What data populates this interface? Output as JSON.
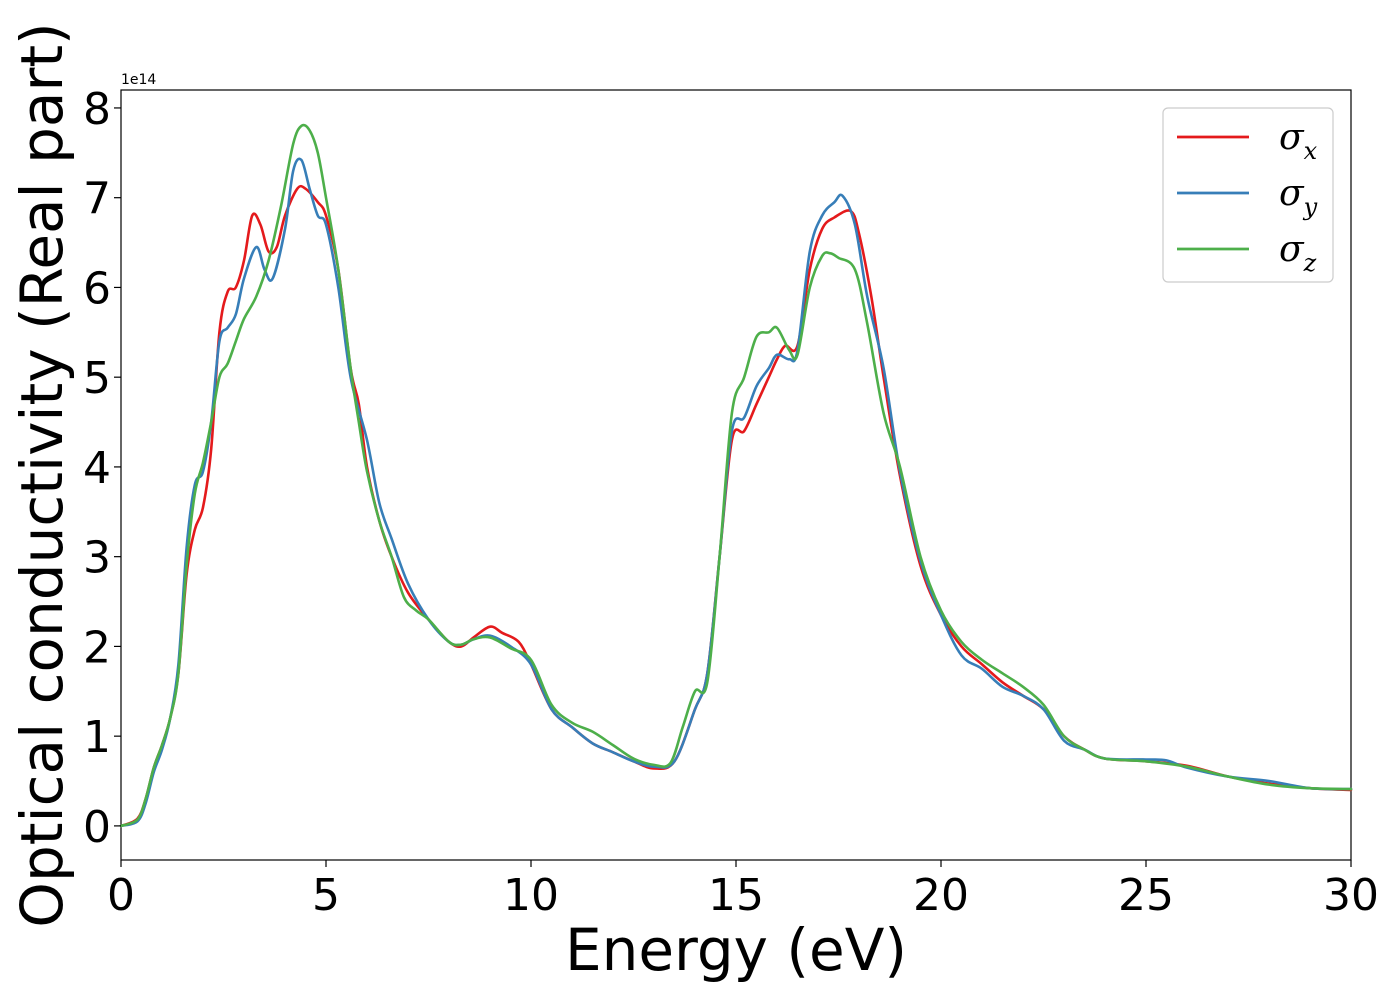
{
  "chart_data": {
    "type": "line",
    "xlabel": "Energy (eV)",
    "ylabel": "Optical conductivity (Real part)",
    "y_offset_text": "1e14",
    "xlim": [
      0,
      30
    ],
    "ylim": [
      -0.38,
      8.2
    ],
    "x_ticks": [
      0,
      5,
      10,
      15,
      20,
      25,
      30
    ],
    "y_ticks": [
      0,
      1,
      2,
      3,
      4,
      5,
      6,
      7,
      8
    ],
    "grid": false,
    "legend_position": "top-right",
    "series": [
      {
        "name": "σx",
        "symbol": "σ",
        "subscript": "x",
        "color": "#e41a1c",
        "points": [
          [
            0,
            0
          ],
          [
            0.4,
            0.08
          ],
          [
            0.6,
            0.3
          ],
          [
            0.8,
            0.65
          ],
          [
            1.0,
            0.9
          ],
          [
            1.2,
            1.2
          ],
          [
            1.4,
            1.7
          ],
          [
            1.6,
            2.8
          ],
          [
            1.8,
            3.3
          ],
          [
            2.0,
            3.55
          ],
          [
            2.2,
            4.2
          ],
          [
            2.4,
            5.5
          ],
          [
            2.6,
            5.95
          ],
          [
            2.8,
            6.0
          ],
          [
            3.0,
            6.3
          ],
          [
            3.2,
            6.8
          ],
          [
            3.4,
            6.7
          ],
          [
            3.6,
            6.4
          ],
          [
            3.8,
            6.45
          ],
          [
            4.0,
            6.8
          ],
          [
            4.3,
            7.1
          ],
          [
            4.5,
            7.1
          ],
          [
            4.8,
            6.95
          ],
          [
            5.0,
            6.8
          ],
          [
            5.3,
            6.2
          ],
          [
            5.6,
            5.1
          ],
          [
            5.8,
            4.7
          ],
          [
            6.0,
            4.0
          ],
          [
            6.3,
            3.4
          ],
          [
            6.6,
            3.0
          ],
          [
            7.0,
            2.6
          ],
          [
            7.5,
            2.3
          ],
          [
            8.0,
            2.05
          ],
          [
            8.3,
            2.0
          ],
          [
            8.6,
            2.1
          ],
          [
            9.0,
            2.22
          ],
          [
            9.3,
            2.15
          ],
          [
            9.7,
            2.05
          ],
          [
            10.0,
            1.8
          ],
          [
            10.5,
            1.3
          ],
          [
            11.0,
            1.1
          ],
          [
            11.5,
            0.92
          ],
          [
            12.0,
            0.82
          ],
          [
            12.5,
            0.72
          ],
          [
            13.0,
            0.64
          ],
          [
            13.5,
            0.72
          ],
          [
            14.0,
            1.3
          ],
          [
            14.3,
            1.7
          ],
          [
            14.6,
            3.0
          ],
          [
            14.9,
            4.3
          ],
          [
            15.2,
            4.4
          ],
          [
            15.5,
            4.7
          ],
          [
            15.8,
            5.0
          ],
          [
            16.0,
            5.2
          ],
          [
            16.2,
            5.35
          ],
          [
            16.5,
            5.35
          ],
          [
            16.8,
            6.2
          ],
          [
            17.1,
            6.65
          ],
          [
            17.4,
            6.78
          ],
          [
            17.8,
            6.85
          ],
          [
            18.0,
            6.6
          ],
          [
            18.3,
            5.9
          ],
          [
            18.6,
            5.0
          ],
          [
            19.0,
            3.9
          ],
          [
            19.5,
            2.9
          ],
          [
            20.0,
            2.35
          ],
          [
            20.5,
            2.0
          ],
          [
            21.0,
            1.8
          ],
          [
            21.5,
            1.6
          ],
          [
            22.0,
            1.45
          ],
          [
            22.5,
            1.3
          ],
          [
            23.0,
            1.0
          ],
          [
            23.5,
            0.85
          ],
          [
            24.0,
            0.75
          ],
          [
            25.0,
            0.72
          ],
          [
            26.0,
            0.67
          ],
          [
            27.0,
            0.55
          ],
          [
            28.0,
            0.47
          ],
          [
            29.0,
            0.42
          ],
          [
            30.0,
            0.4
          ]
        ]
      },
      {
        "name": "σy",
        "symbol": "σ",
        "subscript": "y",
        "color": "#377eb8",
        "points": [
          [
            0,
            0
          ],
          [
            0.4,
            0.05
          ],
          [
            0.6,
            0.25
          ],
          [
            0.8,
            0.6
          ],
          [
            1.0,
            0.85
          ],
          [
            1.2,
            1.2
          ],
          [
            1.4,
            1.8
          ],
          [
            1.6,
            3.1
          ],
          [
            1.8,
            3.8
          ],
          [
            2.0,
            3.95
          ],
          [
            2.2,
            4.5
          ],
          [
            2.4,
            5.4
          ],
          [
            2.6,
            5.55
          ],
          [
            2.8,
            5.7
          ],
          [
            3.0,
            6.1
          ],
          [
            3.3,
            6.45
          ],
          [
            3.5,
            6.2
          ],
          [
            3.7,
            6.1
          ],
          [
            4.0,
            6.65
          ],
          [
            4.2,
            7.3
          ],
          [
            4.4,
            7.42
          ],
          [
            4.6,
            7.1
          ],
          [
            4.8,
            6.8
          ],
          [
            5.0,
            6.7
          ],
          [
            5.3,
            6.0
          ],
          [
            5.6,
            5.0
          ],
          [
            6.0,
            4.3
          ],
          [
            6.3,
            3.6
          ],
          [
            6.6,
            3.2
          ],
          [
            7.0,
            2.7
          ],
          [
            7.5,
            2.3
          ],
          [
            8.0,
            2.05
          ],
          [
            8.3,
            2.02
          ],
          [
            8.6,
            2.08
          ],
          [
            9.0,
            2.12
          ],
          [
            9.5,
            2.0
          ],
          [
            10.0,
            1.8
          ],
          [
            10.5,
            1.3
          ],
          [
            11.0,
            1.1
          ],
          [
            11.5,
            0.92
          ],
          [
            12.0,
            0.82
          ],
          [
            12.5,
            0.72
          ],
          [
            13.0,
            0.66
          ],
          [
            13.5,
            0.72
          ],
          [
            14.0,
            1.3
          ],
          [
            14.3,
            1.7
          ],
          [
            14.6,
            3.0
          ],
          [
            14.9,
            4.4
          ],
          [
            15.2,
            4.55
          ],
          [
            15.5,
            4.9
          ],
          [
            15.8,
            5.1
          ],
          [
            16.0,
            5.25
          ],
          [
            16.3,
            5.2
          ],
          [
            16.5,
            5.3
          ],
          [
            16.8,
            6.4
          ],
          [
            17.1,
            6.8
          ],
          [
            17.4,
            6.95
          ],
          [
            17.6,
            7.02
          ],
          [
            17.9,
            6.7
          ],
          [
            18.2,
            5.9
          ],
          [
            18.6,
            5.1
          ],
          [
            19.0,
            3.95
          ],
          [
            19.5,
            2.95
          ],
          [
            20.0,
            2.35
          ],
          [
            20.5,
            1.9
          ],
          [
            21.0,
            1.75
          ],
          [
            21.5,
            1.55
          ],
          [
            22.0,
            1.45
          ],
          [
            22.5,
            1.3
          ],
          [
            23.0,
            0.95
          ],
          [
            23.5,
            0.85
          ],
          [
            24.0,
            0.75
          ],
          [
            25.0,
            0.74
          ],
          [
            25.5,
            0.73
          ],
          [
            26.0,
            0.65
          ],
          [
            27.0,
            0.55
          ],
          [
            28.0,
            0.5
          ],
          [
            29.0,
            0.42
          ],
          [
            30.0,
            0.41
          ]
        ]
      },
      {
        "name": "σz",
        "symbol": "σ",
        "subscript": "z",
        "color": "#4daf4a",
        "points": [
          [
            0,
            0
          ],
          [
            0.4,
            0.07
          ],
          [
            0.6,
            0.3
          ],
          [
            0.8,
            0.65
          ],
          [
            1.0,
            0.9
          ],
          [
            1.2,
            1.2
          ],
          [
            1.4,
            1.7
          ],
          [
            1.6,
            2.9
          ],
          [
            1.8,
            3.7
          ],
          [
            2.0,
            4.05
          ],
          [
            2.2,
            4.5
          ],
          [
            2.4,
            5.0
          ],
          [
            2.6,
            5.15
          ],
          [
            2.8,
            5.4
          ],
          [
            3.0,
            5.65
          ],
          [
            3.3,
            5.9
          ],
          [
            3.6,
            6.3
          ],
          [
            3.9,
            6.9
          ],
          [
            4.2,
            7.6
          ],
          [
            4.4,
            7.8
          ],
          [
            4.6,
            7.75
          ],
          [
            4.8,
            7.5
          ],
          [
            5.0,
            7.0
          ],
          [
            5.3,
            6.2
          ],
          [
            5.6,
            5.1
          ],
          [
            5.8,
            4.5
          ],
          [
            6.0,
            3.95
          ],
          [
            6.3,
            3.4
          ],
          [
            6.6,
            3.0
          ],
          [
            6.9,
            2.55
          ],
          [
            7.2,
            2.4
          ],
          [
            7.5,
            2.3
          ],
          [
            8.0,
            2.05
          ],
          [
            8.3,
            2.02
          ],
          [
            8.6,
            2.08
          ],
          [
            9.0,
            2.1
          ],
          [
            9.5,
            1.98
          ],
          [
            10.0,
            1.85
          ],
          [
            10.5,
            1.35
          ],
          [
            11.0,
            1.15
          ],
          [
            11.5,
            1.05
          ],
          [
            12.0,
            0.9
          ],
          [
            12.5,
            0.75
          ],
          [
            13.0,
            0.68
          ],
          [
            13.4,
            0.7
          ],
          [
            13.7,
            1.1
          ],
          [
            14.0,
            1.5
          ],
          [
            14.3,
            1.6
          ],
          [
            14.6,
            3.0
          ],
          [
            14.9,
            4.6
          ],
          [
            15.2,
            5.0
          ],
          [
            15.5,
            5.45
          ],
          [
            15.8,
            5.5
          ],
          [
            16.0,
            5.55
          ],
          [
            16.3,
            5.3
          ],
          [
            16.5,
            5.25
          ],
          [
            16.8,
            6.0
          ],
          [
            17.1,
            6.35
          ],
          [
            17.3,
            6.38
          ],
          [
            17.5,
            6.33
          ],
          [
            17.9,
            6.2
          ],
          [
            18.2,
            5.6
          ],
          [
            18.6,
            4.6
          ],
          [
            19.0,
            4.0
          ],
          [
            19.5,
            3.0
          ],
          [
            20.0,
            2.4
          ],
          [
            20.5,
            2.05
          ],
          [
            21.0,
            1.85
          ],
          [
            21.5,
            1.7
          ],
          [
            22.0,
            1.55
          ],
          [
            22.5,
            1.35
          ],
          [
            23.0,
            1.0
          ],
          [
            23.5,
            0.85
          ],
          [
            24.0,
            0.75
          ],
          [
            25.0,
            0.72
          ],
          [
            26.0,
            0.66
          ],
          [
            27.0,
            0.55
          ],
          [
            28.0,
            0.46
          ],
          [
            29.0,
            0.42
          ],
          [
            30.0,
            0.41
          ]
        ]
      }
    ]
  }
}
